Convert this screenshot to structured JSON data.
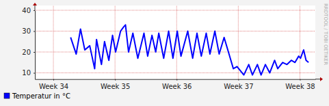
{
  "chart_data": {
    "type": "line",
    "x": [
      34.28,
      34.37,
      34.44,
      34.51,
      34.59,
      34.67,
      34.7,
      34.78,
      34.83,
      34.9,
      34.96,
      35.01,
      35.09,
      35.14,
      35.17,
      35.22,
      35.29,
      35.37,
      35.47,
      35.53,
      35.6,
      35.66,
      35.71,
      35.79,
      35.87,
      35.94,
      36.01,
      36.07,
      36.18,
      36.26,
      36.33,
      36.4,
      36.48,
      36.54,
      36.62,
      36.69,
      36.77,
      36.84,
      36.92,
      36.98,
      37.09,
      37.17,
      37.23,
      37.31,
      37.37,
      37.44,
      37.51,
      37.59,
      37.64,
      37.72,
      37.79,
      37.86,
      37.92,
      37.98,
      38.01,
      38.06,
      38.1,
      38.14
    ],
    "series": [
      {
        "name": "Temperatur in °C",
        "color": "#0000ff",
        "values": [
          27,
          19,
          31,
          21,
          23,
          12,
          26,
          14,
          25,
          16,
          28,
          20,
          30,
          32,
          33,
          20,
          29,
          17,
          29,
          18,
          28,
          20,
          29,
          17,
          30,
          17,
          30,
          18,
          30,
          17,
          29,
          18,
          29,
          19,
          30,
          19,
          27,
          20,
          12,
          13,
          9,
          14,
          9,
          14,
          9,
          14,
          10,
          16,
          12,
          15,
          14,
          16,
          15,
          18,
          17,
          21,
          16,
          15
        ]
      }
    ],
    "xlim": [
      33.7,
      38.25
    ],
    "xticks": [
      {
        "value": 34,
        "label": "Week 34"
      },
      {
        "value": 35,
        "label": "Week 35"
      },
      {
        "value": 36,
        "label": "Week 36"
      },
      {
        "value": 37,
        "label": "Week 37"
      },
      {
        "value": 38,
        "label": "Week 38"
      }
    ],
    "ylim": [
      7,
      40
    ],
    "yticks": [
      10,
      20,
      30,
      40
    ],
    "grid": true,
    "annotations": [
      "RRDTOOL / TOBI OETIKER"
    ]
  }
}
